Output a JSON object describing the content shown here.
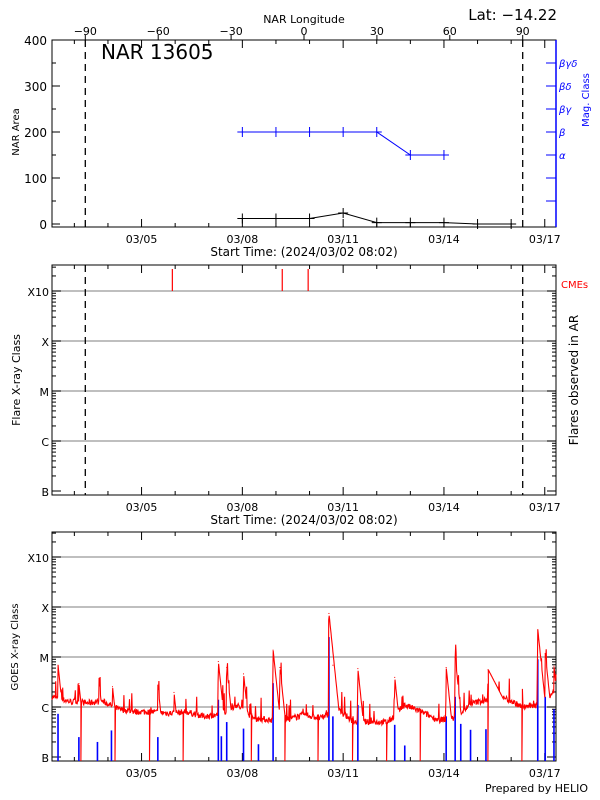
{
  "chart_data": [
    {
      "type": "line",
      "title": "NAR 13605",
      "latitude_label": "Lat: −14.22",
      "top_axis_label": "NAR Longitude",
      "top_axis_ticks": [
        -90,
        -60,
        -30,
        0,
        30,
        60,
        90
      ],
      "xlabel": "Start Time: (2024/03/02 08:02)",
      "x_tick_labels": [
        "03/05",
        "03/08",
        "03/11",
        "03/14",
        "03/17"
      ],
      "ylabel": "NAR Area",
      "ylim": [
        0,
        400
      ],
      "y_ticks": [
        0,
        100,
        200,
        300,
        400
      ],
      "y2label": "Mag. Class",
      "mag_class_scale": [
        {
          "label": "α",
          "value": 150
        },
        {
          "label": "β",
          "value": 200
        },
        {
          "label": "βγ",
          "value": 250
        },
        {
          "label": "βδ",
          "value": 300
        },
        {
          "label": "βγδ",
          "value": 350
        }
      ],
      "limb_longitudes": [
        -90,
        90
      ],
      "colors": {
        "area": "#000000",
        "mag_class": "#0000ff"
      },
      "area_series": [
        {
          "date": "2024-03-08T00:00",
          "area": 12
        },
        {
          "date": "2024-03-09T00:00",
          "area": 12
        },
        {
          "date": "2024-03-10T00:00",
          "area": 12
        },
        {
          "date": "2024-03-11T00:00",
          "area": 24
        },
        {
          "date": "2024-03-12T00:00",
          "area": 3
        },
        {
          "date": "2024-03-13T00:00",
          "area": 3
        },
        {
          "date": "2024-03-14T00:00",
          "area": 3
        },
        {
          "date": "2024-03-15T00:00",
          "area": 0
        },
        {
          "date": "2024-03-16T00:00",
          "area": 0
        }
      ],
      "mag_class_series": [
        {
          "date": "2024-03-08T00:00",
          "class": "β"
        },
        {
          "date": "2024-03-09T00:00",
          "class": "β"
        },
        {
          "date": "2024-03-10T00:00",
          "class": "β"
        },
        {
          "date": "2024-03-11T00:00",
          "class": "β"
        },
        {
          "date": "2024-03-12T00:00",
          "class": "β"
        },
        {
          "date": "2024-03-13T00:00",
          "class": "α"
        },
        {
          "date": "2024-03-14T00:00",
          "class": "α"
        }
      ]
    },
    {
      "type": "scatter",
      "xlabel": "Start Time: (2024/03/02 08:02)",
      "x_tick_labels": [
        "03/05",
        "03/08",
        "03/11",
        "03/14",
        "03/17"
      ],
      "ylabel": "Flare X-ray Class",
      "y2label": "Flares observed in AR",
      "y_scale": "log",
      "y_class_ticks": [
        {
          "label": "B",
          "flux": 1e-07
        },
        {
          "label": "C",
          "flux": 1e-06
        },
        {
          "label": "M",
          "flux": 1e-05
        },
        {
          "label": "X",
          "flux": 0.0001
        },
        {
          "label": "X10",
          "flux": 0.001
        }
      ],
      "grid": true,
      "cme_label": "CMEs",
      "cme_color": "#ff0000",
      "cmes": [
        "2024-03-05T22:00",
        "2024-03-09T04:30",
        "2024-03-09T23:00"
      ],
      "flares": []
    },
    {
      "type": "line",
      "ylabel": "GOES X-ray Class",
      "y_scale": "log",
      "y_class_ticks": [
        {
          "label": "B",
          "flux": 1e-07
        },
        {
          "label": "C",
          "flux": 1e-06
        },
        {
          "label": "M",
          "flux": 1e-05
        },
        {
          "label": "X",
          "flux": 0.0001
        },
        {
          "label": "X10",
          "flux": 0.001
        }
      ],
      "x_tick_labels": [
        "03/05",
        "03/08",
        "03/11",
        "03/14",
        "03/17"
      ],
      "grid": true,
      "colors": {
        "long_channel": "#ff0000",
        "short_channel": "#0000ff"
      },
      "long_channel_background": [
        [
          "2024-03-02T08:02",
          1.6e-06
        ],
        [
          "2024-03-02T20:00",
          1.3e-06
        ],
        [
          "2024-03-03T08:00",
          1.2e-06
        ],
        [
          "2024-03-03T20:00",
          1.3e-06
        ],
        [
          "2024-03-04T08:00",
          9e-07
        ],
        [
          "2024-03-04T20:00",
          8e-07
        ],
        [
          "2024-03-05T08:00",
          8e-07
        ],
        [
          "2024-03-05T20:00",
          7.5e-07
        ],
        [
          "2024-03-06T08:00",
          8e-07
        ],
        [
          "2024-03-06T20:00",
          6.5e-07
        ],
        [
          "2024-03-07T08:00",
          7e-07
        ],
        [
          "2024-03-07T20:00",
          1.1e-06
        ],
        [
          "2024-03-08T08:00",
          6e-07
        ],
        [
          "2024-03-08T20:00",
          5.5e-07
        ],
        [
          "2024-03-09T08:00",
          5.5e-07
        ],
        [
          "2024-03-09T20:00",
          7e-07
        ],
        [
          "2024-03-10T08:00",
          6e-07
        ],
        [
          "2024-03-10T20:00",
          9e-07
        ],
        [
          "2024-03-11T08:00",
          5e-07
        ],
        [
          "2024-03-11T20:00",
          5e-07
        ],
        [
          "2024-03-12T08:00",
          5e-07
        ],
        [
          "2024-03-12T20:00",
          1.1e-06
        ],
        [
          "2024-03-13T08:00",
          8e-07
        ],
        [
          "2024-03-13T20:00",
          5.5e-07
        ],
        [
          "2024-03-14T08:00",
          6e-07
        ],
        [
          "2024-03-14T20:00",
          1.2e-06
        ],
        [
          "2024-03-15T08:00",
          1.4e-06
        ],
        [
          "2024-03-15T20:00",
          1.5e-06
        ],
        [
          "2024-03-16T08:00",
          1e-06
        ],
        [
          "2024-03-16T20:00",
          1.1e-06
        ],
        [
          "2024-03-17T08:02",
          2.2e-06
        ]
      ],
      "long_channel_flares": [
        [
          "2024-03-02T12:20",
          7e-06
        ],
        [
          "2024-03-03T03:14",
          3e-06
        ],
        [
          "2024-03-03T17:38",
          3.3e-06
        ],
        [
          "2024-03-04T03:14",
          2.6e-06
        ],
        [
          "2024-03-05T11:38",
          2.8e-06
        ],
        [
          "2024-03-05T23:10",
          2e-06
        ],
        [
          "2024-03-07T06:50",
          8.3e-06
        ],
        [
          "2024-03-07T12:50",
          6.3e-06
        ],
        [
          "2024-03-08T00:50",
          4.7e-06
        ],
        [
          "2024-03-08T21:57",
          1.4e-05
        ],
        [
          "2024-03-09T02:50",
          6.3e-06
        ],
        [
          "2024-03-10T13:50",
          7.6e-05
        ],
        [
          "2024-03-10T16:40",
          7e-06
        ],
        [
          "2024-03-11T10:30",
          6e-06
        ],
        [
          "2024-03-12T12:50",
          4e-06
        ],
        [
          "2024-03-14T01:35",
          6.3e-06
        ],
        [
          "2024-03-14T08:00",
          1e-05
        ],
        [
          "2024-03-15T07:30",
          5.7e-06
        ],
        [
          "2024-03-16T19:00",
          3.6e-05
        ],
        [
          "2024-03-17T00:20",
          1.2e-05
        ],
        [
          "2024-03-17T06:35",
          6.7e-06
        ]
      ],
      "long_channel_dropouts": [
        "2024-03-03T04:40",
        "2024-03-04T05:10",
        "2024-03-05T05:40",
        "2024-03-06T05:40",
        "2024-03-08T06:20",
        "2024-03-09T06:20",
        "2024-03-10T06:10",
        "2024-03-11T06:50",
        "2024-03-12T07:10",
        "2024-03-13T07:10",
        "2024-03-15T07:30",
        "2024-03-16T07:35"
      ],
      "short_channel_peaks": [
        [
          "2024-03-02T12:20",
          7.3e-07
        ],
        [
          "2024-03-03T03:14",
          2.5e-07
        ],
        [
          "2024-03-03T16:30",
          2e-07
        ],
        [
          "2024-03-04T02:30",
          3.4e-07
        ],
        [
          "2024-03-05T11:38",
          2.5e-07
        ],
        [
          "2024-03-07T06:50",
          1.4e-06
        ],
        [
          "2024-03-07T09:00",
          2.6e-07
        ],
        [
          "2024-03-07T12:50",
          5e-07
        ],
        [
          "2024-03-08T00:50",
          3.7e-07
        ],
        [
          "2024-03-08T11:30",
          1.8e-07
        ],
        [
          "2024-03-08T21:57",
          3e-06
        ],
        [
          "2024-03-10T13:50",
          2.5e-05
        ],
        [
          "2024-03-10T16:40",
          6.5e-07
        ],
        [
          "2024-03-11T10:30",
          1.1e-06
        ],
        [
          "2024-03-12T12:50",
          4.4e-07
        ],
        [
          "2024-03-12T20:00",
          1.7e-07
        ],
        [
          "2024-03-14T01:35",
          6.5e-07
        ],
        [
          "2024-03-14T08:00",
          1.6e-06
        ],
        [
          "2024-03-14T12:00",
          4.6e-07
        ],
        [
          "2024-03-14T19:00",
          3.5e-07
        ],
        [
          "2024-03-15T06:00",
          3.6e-07
        ],
        [
          "2024-03-16T19:00",
          9e-06
        ],
        [
          "2024-03-17T00:20",
          1.6e-06
        ],
        [
          "2024-03-17T06:35",
          9e-07
        ]
      ]
    }
  ],
  "footer": {
    "credit": "Prepared by HELIO"
  }
}
